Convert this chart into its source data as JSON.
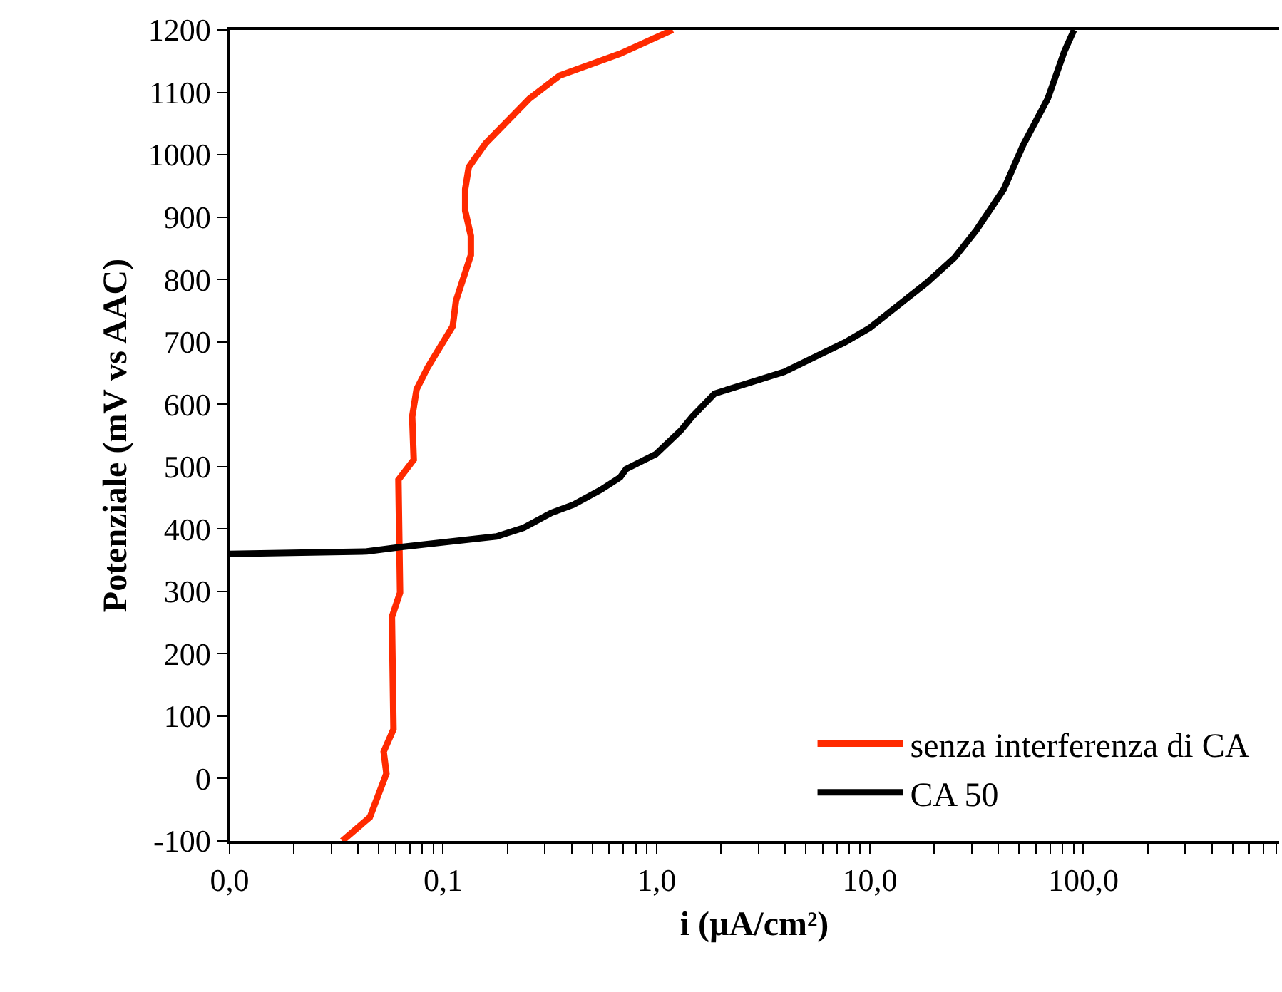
{
  "chart_data": {
    "type": "line",
    "xlabel": "i (µA/cm²)",
    "ylabel": "Potenziale (mV vs AAC)",
    "log": "x",
    "grid": false,
    "legend": "bottom right",
    "line_style": "solid",
    "marker": "none",
    "xlim": [
      0.01,
      826
    ],
    "ylim": [
      -100,
      1200
    ],
    "xticks": [
      {
        "value": 0.01,
        "label": "0,0"
      },
      {
        "value": 0.02,
        "label": null
      },
      {
        "value": 0.03,
        "label": null
      },
      {
        "value": 0.04,
        "label": null
      },
      {
        "value": 0.05,
        "label": null
      },
      {
        "value": 0.06,
        "label": null
      },
      {
        "value": 0.07,
        "label": null
      },
      {
        "value": 0.08,
        "label": null
      },
      {
        "value": 0.09,
        "label": null
      },
      {
        "value": 0.1,
        "label": "0,1"
      },
      {
        "value": 0.2,
        "label": null
      },
      {
        "value": 0.3,
        "label": null
      },
      {
        "value": 0.4,
        "label": null
      },
      {
        "value": 0.5,
        "label": null
      },
      {
        "value": 0.6,
        "label": null
      },
      {
        "value": 0.7,
        "label": null
      },
      {
        "value": 0.8,
        "label": null
      },
      {
        "value": 0.9,
        "label": null
      },
      {
        "value": 1,
        "label": "1,0"
      },
      {
        "value": 2,
        "label": null
      },
      {
        "value": 3,
        "label": null
      },
      {
        "value": 4,
        "label": null
      },
      {
        "value": 5,
        "label": null
      },
      {
        "value": 6,
        "label": null
      },
      {
        "value": 7,
        "label": null
      },
      {
        "value": 8,
        "label": null
      },
      {
        "value": 9,
        "label": null
      },
      {
        "value": 10,
        "label": "10,0"
      },
      {
        "value": 20,
        "label": null
      },
      {
        "value": 30,
        "label": null
      },
      {
        "value": 40,
        "label": null
      },
      {
        "value": 50,
        "label": null
      },
      {
        "value": 60,
        "label": null
      },
      {
        "value": 70,
        "label": null
      },
      {
        "value": 80,
        "label": null
      },
      {
        "value": 90,
        "label": null
      },
      {
        "value": 100,
        "label": "100,0"
      },
      {
        "value": 200,
        "label": null
      },
      {
        "value": 300,
        "label": null
      },
      {
        "value": 400,
        "label": null
      },
      {
        "value": 500,
        "label": null
      },
      {
        "value": 600,
        "label": null
      },
      {
        "value": 700,
        "label": null
      },
      {
        "value": 800,
        "label": null
      }
    ],
    "yticks": [
      -100,
      0,
      100,
      200,
      300,
      400,
      500,
      600,
      700,
      800,
      900,
      1000,
      1100,
      1200
    ],
    "series": [
      {
        "name": "senza interferenza di CA",
        "color": "#ff2a00",
        "x": [
          0.0337,
          0.0454,
          0.0543,
          0.0527,
          0.0586,
          0.0576,
          0.0629,
          0.0618,
          0.0729,
          0.0717,
          0.0752,
          0.0847,
          0.111,
          0.115,
          0.135,
          0.135,
          0.127,
          0.127,
          0.132,
          0.158,
          0.254,
          0.352,
          0.676,
          1.19
        ],
        "values": [
          -100,
          -62,
          8,
          43,
          79,
          259,
          298,
          479,
          511,
          580,
          624,
          659,
          725,
          766,
          839,
          870,
          910,
          945,
          980,
          1018,
          1090,
          1127,
          1162,
          1200
        ]
      },
      {
        "name": "CA 50",
        "color": "#000000",
        "x": [
          0.01,
          0.044,
          0.063,
          0.178,
          0.239,
          0.322,
          0.408,
          0.549,
          0.676,
          0.72,
          0.993,
          1.3,
          1.47,
          1.87,
          3.97,
          7.62,
          9.93,
          18.5,
          24.9,
          31.5,
          42.4,
          52.1,
          68.1,
          81.3,
          90.4
        ],
        "values": [
          360,
          364,
          371,
          388,
          402,
          426,
          439,
          463,
          483,
          496,
          520,
          558,
          580,
          617,
          652,
          699,
          722,
          795,
          835,
          879,
          945,
          1015,
          1090,
          1165,
          1200
        ]
      }
    ]
  }
}
